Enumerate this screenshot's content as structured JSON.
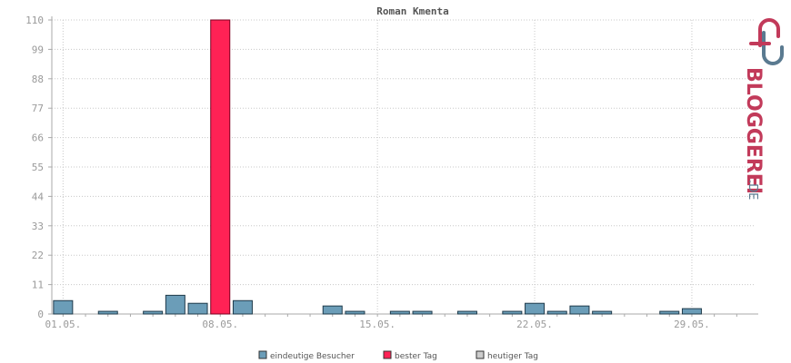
{
  "chart_data": {
    "type": "bar",
    "title": "Roman Kmenta",
    "xlabel": "",
    "ylabel": "",
    "ylim": [
      0,
      110
    ],
    "yticks": [
      0,
      11,
      22,
      33,
      44,
      55,
      66,
      77,
      88,
      99,
      110
    ],
    "x_tick_labels": [
      {
        "day": 1,
        "label": "01.05."
      },
      {
        "day": 8,
        "label": "08.05."
      },
      {
        "day": 15,
        "label": "15.05."
      },
      {
        "day": 22,
        "label": "22.05."
      },
      {
        "day": 29,
        "label": "29.05."
      }
    ],
    "days": [
      1,
      2,
      3,
      4,
      5,
      6,
      7,
      8,
      9,
      10,
      11,
      12,
      13,
      14,
      15,
      16,
      17,
      18,
      19,
      20,
      21,
      22,
      23,
      24,
      25,
      26,
      27,
      28,
      29,
      30,
      31
    ],
    "values": [
      5,
      0,
      1,
      0,
      1,
      7,
      4,
      110,
      5,
      0,
      0,
      0,
      3,
      1,
      0,
      1,
      1,
      0,
      1,
      0,
      1,
      4,
      1,
      3,
      1,
      0,
      0,
      1,
      2,
      0,
      0
    ],
    "best_day": 8,
    "grid": true,
    "colors": {
      "visitors": "#6b9db8",
      "best_day": "#ff2255",
      "today": "#cccccc",
      "bar_stroke": "#1f3a4a",
      "grid": "#c8c8c8",
      "axis": "#aaaaaa"
    },
    "legend": {
      "placement": "bottom",
      "items": [
        {
          "label": "eindeutige Besucher",
          "color": "#6b9db8"
        },
        {
          "label": "bester Tag",
          "color": "#ff2255"
        },
        {
          "label": "heutiger Tag",
          "color": "#cccccc"
        }
      ]
    }
  },
  "brand": {
    "logo": "bloggerei-logo",
    "name": "BLOGGEREI",
    "suffix": ".DE",
    "colors": {
      "primary": "#c23a5a",
      "secondary": "#5a7a90"
    }
  }
}
